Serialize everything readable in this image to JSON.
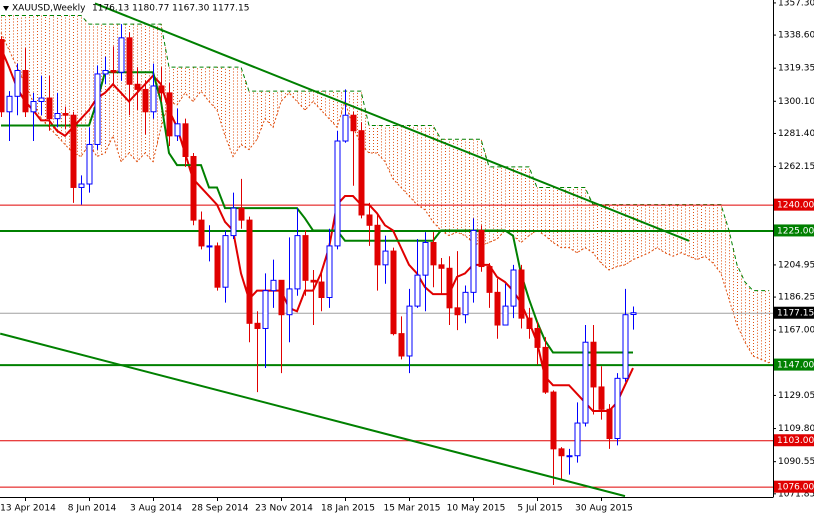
{
  "chart_data": {
    "type": "candlestick",
    "title": "XAUUSD,Weekly",
    "ohlc_label": "1176.13 1180.77 1167.30 1177.15",
    "categories": [
      null,
      null,
      null,
      "13 Apr 2014",
      null,
      null,
      null,
      null,
      null,
      null,
      null,
      "8 Jun 2014",
      null,
      null,
      null,
      null,
      null,
      null,
      null,
      "3 Aug 2014",
      null,
      null,
      null,
      null,
      null,
      null,
      null,
      "28 Sep 2014",
      null,
      null,
      null,
      null,
      null,
      null,
      null,
      "23 Nov 2014",
      null,
      null,
      null,
      null,
      null,
      null,
      null,
      "18 Jan 2015",
      null,
      null,
      null,
      null,
      null,
      null,
      null,
      "15 Mar 2015",
      null,
      null,
      null,
      null,
      null,
      null,
      null,
      "10 May 2015",
      null,
      null,
      null,
      null,
      null,
      null,
      null,
      "5 Jul 2015",
      null,
      null,
      null,
      null,
      null,
      null,
      null,
      "30 Aug 2015",
      null,
      null,
      null,
      null,
      null,
      null,
      null,
      null,
      null,
      null,
      null,
      null,
      null,
      null,
      null,
      null,
      null,
      null,
      null,
      null,
      null
    ],
    "open": [
      1336,
      1294,
      1303,
      1318,
      1294,
      1300,
      1302,
      1290,
      1293,
      1292,
      1250,
      1252,
      1275,
      1316,
      1318,
      1317,
      1337,
      1310,
      1307,
      1294,
      1309,
      1305,
      1280,
      1287,
      1268,
      1231,
      1216,
      1216,
      1192,
      1222,
      1238,
      1231,
      1171,
      1168,
      1190,
      1196,
      1176,
      1191,
      1222,
      1196,
      1195,
      1186,
      1216,
      1277,
      1292,
      1283,
      1234,
      1228,
      1205,
      1213,
      1165,
      1152,
      1181,
      1199,
      1218,
      1205,
      1203,
      1180,
      1176,
      1189,
      1225,
      1204,
      1189,
      1170,
      1181,
      1202,
      1174,
      1168,
      1157,
      1131,
      1098,
      1094,
      1094,
      1113,
      1160,
      1134,
      1121,
      1104,
      1139,
      1176.13,
      null,
      null,
      null,
      null,
      null,
      null,
      null,
      null,
      null,
      null,
      null,
      null,
      null,
      null,
      null,
      null,
      null
    ],
    "high": [
      1338,
      1306,
      1322,
      1331,
      1305,
      1315,
      1315,
      1305,
      1297,
      1294,
      1257,
      1285,
      1321,
      1326,
      1332,
      1345,
      1340,
      1320,
      1312,
      1322,
      1320,
      1311,
      1296,
      1290,
      1270,
      1236,
      1228,
      1218,
      1225,
      1247,
      1255,
      1233,
      1178,
      1200,
      1208,
      1196,
      1221,
      1238,
      1225,
      1202,
      1202,
      1226,
      1283,
      1307,
      1294,
      1288,
      1241,
      1234,
      1222,
      1215,
      1175,
      1191,
      1220,
      1224,
      1224,
      1209,
      1210,
      1213,
      1193,
      1232,
      1228,
      1206,
      1197,
      1194,
      1205,
      1205,
      1180,
      1172,
      1163,
      1132,
      1099,
      1098,
      1125,
      1170,
      1170,
      1146,
      1124,
      1142,
      1191,
      1180.77,
      null,
      null,
      null,
      null,
      null,
      null,
      null,
      null,
      null,
      null,
      null,
      null,
      null,
      null,
      null,
      null,
      null
    ],
    "low": [
      1291,
      1277,
      1292,
      1291,
      1277,
      1292,
      1283,
      1285,
      1284,
      1241,
      1240,
      1247,
      1272,
      1310,
      1310,
      1312,
      1292,
      1295,
      1281,
      1290,
      1300,
      1274,
      1277,
      1262,
      1228,
      1214,
      1207,
      1190,
      1183,
      1220,
      1226,
      1160,
      1131,
      1145,
      1180,
      1142,
      1160,
      1187,
      1187,
      1170,
      1178,
      1180,
      1214,
      1276,
      1251,
      1232,
      1216,
      1190,
      1194,
      1164,
      1150,
      1142,
      1180,
      1178,
      1192,
      1188,
      1170,
      1167,
      1171,
      1183,
      1201,
      1180,
      1162,
      1172,
      1174,
      1168,
      1162,
      1147,
      1130,
      1077,
      1080,
      1083,
      1090,
      1111,
      1118,
      1115,
      1098,
      1100,
      1137,
      1167.3,
      null,
      null,
      null,
      null,
      null,
      null,
      null,
      null,
      null,
      null,
      null,
      null,
      null,
      null,
      null,
      null,
      null
    ],
    "close": [
      1294,
      1303,
      1318,
      1294,
      1300,
      1302,
      1290,
      1293,
      1292,
      1250,
      1252,
      1275,
      1316,
      1318,
      1317,
      1337,
      1310,
      1307,
      1294,
      1309,
      1305,
      1280,
      1287,
      1268,
      1231,
      1216,
      1216,
      1192,
      1222,
      1238,
      1231,
      1171,
      1168,
      1190,
      1196,
      1176,
      1191,
      1222,
      1196,
      1195,
      1186,
      1216,
      1277,
      1292,
      1283,
      1234,
      1228,
      1205,
      1213,
      1165,
      1152,
      1181,
      1199,
      1218,
      1205,
      1203,
      1180,
      1176,
      1189,
      1225,
      1204,
      1189,
      1170,
      1181,
      1202,
      1174,
      1168,
      1157,
      1131,
      1098,
      1094,
      1094,
      1113,
      1160,
      1134,
      1121,
      1104,
      1139,
      1176,
      1177.15,
      null,
      null,
      null,
      null,
      null,
      null,
      null,
      null,
      null,
      null,
      null,
      null,
      null,
      null,
      null,
      null,
      null
    ],
    "up_color": "#0000ff",
    "down_color": "#e00000",
    "lines": [
      {
        "color": "#e00000",
        "values": [
          1331,
          1320,
          1308,
          1300,
          1295,
          1289,
          1289,
          1283,
          1280,
          1285,
          1290,
          1295,
          1302,
          1305,
          1310,
          1305,
          1300,
          1305,
          1310,
          1315,
          1310,
          1295,
          1285,
          1270,
          1255,
          1250,
          1245,
          1240,
          1230,
          1225,
          1200,
          1185,
          1190,
          1190,
          1190,
          1190,
          1180,
          1178,
          1190,
          1190,
          1200,
          1215,
          1240,
          1245,
          1245,
          1240,
          1240,
          1235,
          1228,
          1225,
          1215,
          1205,
          1200,
          1192,
          1188,
          1188,
          1188,
          1198,
          1200,
          1205,
          1205,
          1205,
          1198,
          1195,
          1190,
          1183,
          1172,
          1160,
          1140,
          1135,
          1135,
          1135,
          1130,
          1125,
          1120,
          1120,
          1120,
          1125,
          1135,
          1145,
          null,
          null,
          null,
          null,
          null,
          null,
          null,
          null,
          null,
          null,
          null,
          null,
          null,
          null,
          null,
          null,
          null
        ]
      },
      {
        "color": "#008000",
        "values": [
          1286,
          1286,
          1286,
          1286,
          1286,
          1286,
          1286,
          1286,
          1286,
          1286,
          1286,
          1286,
          1300,
          1317,
          1317,
          1317,
          1317,
          1317,
          1317,
          1317,
          1300,
          1270,
          1263,
          1263,
          1263,
          1263,
          1250,
          1250,
          1238,
          1238,
          1238,
          1238,
          1238,
          1238,
          1238,
          1238,
          1238,
          1238,
          1232,
          1225,
          1225,
          1225,
          1225,
          1219,
          1219,
          1219,
          1219,
          1219,
          1219,
          1219,
          1219,
          1219,
          1219,
          1219,
          1219,
          1225,
          1225,
          1225,
          1225,
          1225,
          1225,
          1225,
          1225,
          1225,
          1222,
          1200,
          1185,
          1172,
          1161,
          1154,
          1154,
          1154,
          1154,
          1154,
          1154,
          1154,
          1154,
          1154,
          1154,
          1154,
          null,
          null,
          null,
          null,
          null,
          null,
          null,
          null,
          null,
          null,
          null,
          null,
          null,
          null,
          null,
          null,
          null
        ]
      }
    ],
    "cloud": {
      "color": "#e05010",
      "span_a": [
        1340,
        1330,
        1320,
        1310,
        1300,
        1290,
        1285,
        1280,
        1275,
        1270,
        1268,
        1275,
        1268,
        1270,
        1280,
        1265,
        1270,
        1265,
        1270,
        1265,
        1285,
        1300,
        1298,
        1305,
        1300,
        1306,
        1300,
        1295,
        1280,
        1268,
        1275,
        1272,
        1278,
        1290,
        1285,
        1300,
        1305,
        1300,
        1295,
        1300,
        1295,
        1290,
        1285,
        1300,
        1285,
        1275,
        1270,
        1270,
        1265,
        1255,
        1250,
        1245,
        1240,
        1237,
        1230,
        1225,
        1222,
        1224,
        1222,
        1218,
        1216,
        1218,
        1220,
        1225,
        1222,
        1218,
        1222,
        1225,
        1222,
        1218,
        1215,
        1215,
        1212,
        1215,
        1212,
        1206,
        1202,
        1204,
        1205,
        1208,
        1210,
        1212,
        1215,
        1212,
        1210,
        1212,
        1210,
        1208,
        1210,
        1206,
        1200,
        1185,
        1170,
        1160,
        1152,
        1150,
        1148
      ],
      "span_b": [
        1350,
        1350,
        1350,
        1350,
        1350,
        1350,
        1350,
        1350,
        1350,
        1350,
        1350,
        1345,
        1345,
        1345,
        1345,
        1345,
        1345,
        1345,
        1345,
        1345,
        1345,
        1320,
        1320,
        1320,
        1320,
        1320,
        1320,
        1320,
        1320,
        1320,
        1320,
        1306,
        1306,
        1306,
        1306,
        1306,
        1306,
        1306,
        1306,
        1306,
        1306,
        1306,
        1306,
        1306,
        1306,
        1306,
        1286,
        1286,
        1286,
        1286,
        1286,
        1286,
        1286,
        1286,
        1286,
        1278,
        1278,
        1278,
        1278,
        1278,
        1278,
        1262,
        1262,
        1262,
        1262,
        1262,
        1262,
        1250,
        1250,
        1250,
        1250,
        1250,
        1250,
        1250,
        1240,
        1240,
        1240,
        1240,
        1240,
        1240,
        1240,
        1240,
        1240,
        1240,
        1240,
        1240,
        1240,
        1240,
        1240,
        1240,
        1240,
        1225,
        1205,
        1195,
        1190,
        1190,
        1190
      ],
      "span_b_color": "#008000"
    },
    "trendlines": [
      {
        "color": "#008000",
        "x": [
          11.75,
          86
        ],
        "values": [
          1357,
          1219
        ]
      },
      {
        "color": "#008000",
        "x": [
          -0.1,
          78
        ],
        "values": [
          1165,
          1070.5
        ]
      }
    ],
    "levels": [
      {
        "value": 1240,
        "label": "1240.00",
        "color": "#e00000"
      },
      {
        "value": 1225,
        "label": "1225.00",
        "color": "#008000"
      },
      {
        "value": 1147,
        "label": "1147.00",
        "color": "#008000"
      },
      {
        "value": 1103,
        "label": "1103.00",
        "color": "#e00000"
      },
      {
        "value": 1076,
        "label": "1076.00",
        "color": "#e00000"
      }
    ],
    "price_line": {
      "value": 1177.15,
      "color": "#a0a0a0",
      "label_color": "#000000"
    },
    "ylim": [
      1070,
      1359
    ],
    "yticks": [
      {
        "value": 1357.3,
        "label": "1357.30"
      },
      {
        "value": 1338.6,
        "label": "1338.60"
      },
      1319.35,
      {
        "value": 1300.1,
        "label": "1300.10"
      },
      {
        "value": 1281.4,
        "label": "1281.40"
      },
      1262.15,
      1204.95,
      1186.25,
      {
        "value": 1167,
        "label": "1167.00"
      },
      1129.05,
      {
        "value": 1109.8,
        "label": "1109.80"
      },
      1090.55,
      1071.85
    ]
  }
}
